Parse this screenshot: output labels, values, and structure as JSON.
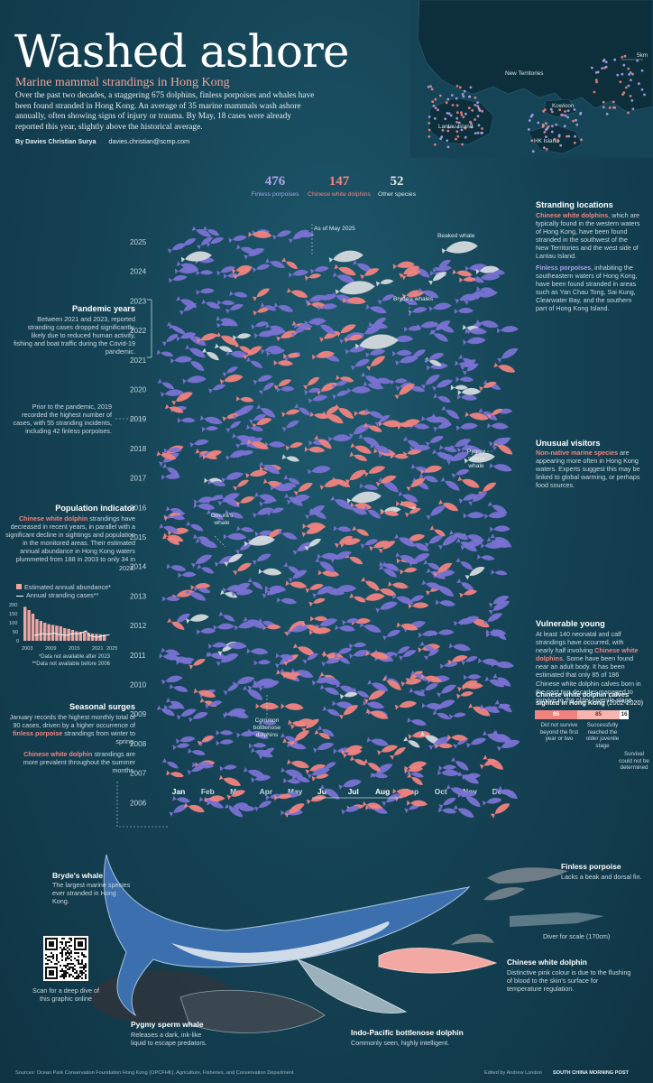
{
  "header": {
    "title": "Washed ashore",
    "subtitle": "Marine mammal strandings in Hong Kong",
    "intro": "Over the past two decades, a staggering 675 dolphins, finless porpoises and whales have been found stranded in Hong Kong. An average of 35 marine mammals wash ashore annually, often showing signs of injury or trauma. By May, 18 cases were already reported this year, slightly above the historical average.",
    "author": "By Davies Christian Surya",
    "email": "davies.christian@scmp.com"
  },
  "map": {
    "labels": [
      "New Territories",
      "Kowloon",
      "Lantau Island",
      "HK Island"
    ],
    "scale": "5km"
  },
  "totals": [
    {
      "value": "476",
      "label": "Finless porpoises",
      "color": "#8e86e0"
    },
    {
      "value": "147",
      "label": "Chinese white dolphins",
      "color": "#f0837f"
    },
    {
      "value": "52",
      "label": "Other species",
      "color": "#d7dde0"
    }
  ],
  "colors": {
    "porpoise": "#7a72d3",
    "dolphin": "#f0837f",
    "other": "#d4dadd",
    "accent": "#f0837f"
  },
  "chart_data": {
    "type": "scatter",
    "years": [
      "2025",
      "2024",
      "2023",
      "2022",
      "2021",
      "2020",
      "2019",
      "2018",
      "2017",
      "2016",
      "2015",
      "2014",
      "2013",
      "2012",
      "2011",
      "2010",
      "2009",
      "2008",
      "2007",
      "2006"
    ],
    "months": [
      "Jan",
      "Feb",
      "Mar",
      "Apr",
      "May",
      "Jun",
      "Jul",
      "Aug",
      "Sep",
      "Oct",
      "Nov",
      "Dec"
    ],
    "annotations": [
      "As of May 2025",
      "Beaked whale",
      "Bryde's whales",
      "Pygmy sperm whale",
      "Omura's whale",
      "Common bottlenose dolphins"
    ]
  },
  "notes": {
    "pandemic_h": "Pandemic years",
    "pandemic": "Between 2021 and 2023, reported stranding cases dropped significantly, likely due to reduced human activity, fishing and boat traffic during the Covid-19 pandemic.",
    "prior2019": "Prior to the pandemic, 2019 recorded the highest number of cases, with 55 stranding incidents, including 42 finless porpoises.",
    "population_h": "Population indicator",
    "population_pink": "Chinese white dolphin",
    "population": "strandings have decreased in recent years, in parallel with a significant decline in sightings and population in the monitored areas. Their estimated annual abundance in Hong Kong waters plummeted from 188 in 2003 to only 34 in 2023.",
    "legend_abundance": "Estimated annual abundance*",
    "legend_cases": "Annual stranding cases**",
    "mini_y": [
      "200",
      "150",
      "100",
      "50",
      "0"
    ],
    "mini_x": [
      "2003",
      "2009",
      "2015",
      "2021",
      "2025"
    ],
    "foot1": "*Data not available after 2023",
    "foot2": "**Data not available before 2006",
    "seasonal_h": "Seasonal surges",
    "seasonal_a": "January records the highest monthly total of 90 cases, driven by a higher occurrence of",
    "seasonal_pink": "finless porpoise",
    "seasonal_b": "strandings from winter to spring.",
    "seasonal2_pink": "Chinese white dolphin",
    "seasonal2": "strandings are more prevalent throughout the summer months.",
    "locations_h": "Stranding locations",
    "locations_pink": "Chinese white dolphins",
    "locations": ", which are typically found in the western waters of Hong Kong, have been found stranded in the southwest of the New Territories and the west side of Lantau Island.",
    "porpoise_pink": "Finless porpoises",
    "porpoise": ", inhabiting the southeastern waters of Hong Kong, have been found stranded in areas such as Yan Chau Tong, Sai Kung, Clearwater Bay, and the southern part of Hong Kong Island.",
    "unusual_h": "Unusual visitors",
    "unusual_pink": "Non-native marine species",
    "unusual": "are appearing more often in Hong Kong waters. Experts suggest this may be linked to global warming, or perhaps food sources.",
    "young_h": "Vulnerable young",
    "young_a": "At least 140 neonatal and calf strandings have occurred, with nearly half involving",
    "young_pink": "Chinese white dolphins",
    "young_b": ". Some have been found near an adult body. It has been estimated that only 85 of 186 Chinese white dolphin calves born in the past two decades managed to survive to the older juvenile stage.",
    "calves_h": "Chinese white dolphin calves sighted in Hong Kong",
    "calves_h2": "(2002-2020)",
    "calves_vals": [
      "85",
      "85",
      "16"
    ],
    "calves_l1": "Did not survive beyond the first year or two",
    "calves_l2": "Successfully reached the older juvenile stage",
    "calves_l3": "Survival could not be determined"
  },
  "species": {
    "brydes_h": "Bryde's whale",
    "brydes": "The largest marine species ever stranded in Hong Kong.",
    "finless_h": "Finless porpoise",
    "finless": "Lacks a beak and dorsal fin.",
    "diver": "Diver for scale (170cm)",
    "cwd_h": "Chinese white dolphin",
    "cwd": "Distinctive pink colour is due to the flushing of blood to the skin's surface for temperature regulation.",
    "pygmy_h": "Pygmy sperm whale",
    "pygmy": "Releases a dark, ink-like liquid to escape predators.",
    "bottlenose_h": "Indo-Pacific bottlenose dolphin",
    "bottlenose": "Commonly seen, highly intelligent.",
    "qr_text": "Scan for a deep dive of this graphic online"
  },
  "footer": {
    "sources": "Sources: Ocean Park Conservation Foundation Hong Kong (OPCFHK), Agriculture, Fisheries, and Conservation Department",
    "editor": "Edited by Andrew London",
    "brand": "SOUTH CHINA MORNING POST"
  }
}
